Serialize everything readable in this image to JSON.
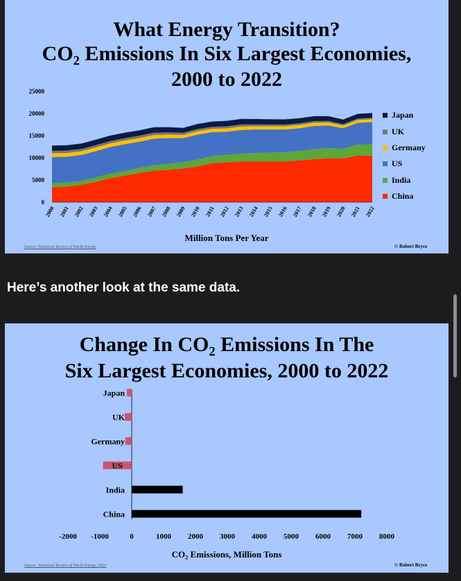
{
  "page": {
    "between_text": "Here’s another look at the same data."
  },
  "chart1": {
    "title_line1": "What Energy Transition?",
    "title_line2_pre": "CO",
    "title_line2_sub": "2",
    "title_line2_post": " Emissions In Six Largest Economies,",
    "title_line3": "2000 to 2022",
    "xlabel": "Million Tons Per Year",
    "source": "Source: Statistical Review of World Energy",
    "credit": "© Robert Bryce"
  },
  "chart2": {
    "title_line1_pre": "Change In CO",
    "title_line1_sub": "2",
    "title_line1_post": " Emissions In The",
    "title_line2": "Six Largest Economies, 2000 to 2022",
    "xlabel_pre": "CO",
    "xlabel_sub": "2",
    "xlabel_post": " Emissions, Million Tons",
    "source": "Source: Statistical Review of World Energy, 2023",
    "credit": "© Robert Bryce"
  },
  "chart_data": [
    {
      "type": "area",
      "stacked": true,
      "title": "What Energy Transition? CO2 Emissions In Six Largest Economies, 2000 to 2022",
      "xlabel": "Million Tons Per Year",
      "ylabel": "",
      "ylim": [
        0,
        25000
      ],
      "yticks": [
        0,
        5000,
        10000,
        15000,
        20000,
        25000
      ],
      "grid": false,
      "legend_position": "right",
      "x": [
        "2000",
        "2001",
        "2002",
        "2003",
        "2004",
        "2005",
        "2006",
        "2007",
        "2008",
        "2009",
        "2010",
        "2011",
        "2012",
        "2013",
        "2014",
        "2015",
        "2016",
        "2017",
        "2018",
        "2019",
        "2020",
        "2021",
        "2022"
      ],
      "series": [
        {
          "name": "China",
          "color": "#ff2a00",
          "values": [
            3400,
            3500,
            3900,
            4600,
            5400,
            6000,
            6600,
            7100,
            7300,
            7600,
            8100,
            8800,
            9000,
            9200,
            9200,
            9200,
            9200,
            9400,
            9700,
            9900,
            9900,
            10500,
            10500
          ]
        },
        {
          "name": "India",
          "color": "#5ea63a",
          "values": [
            900,
            950,
            950,
            1000,
            1050,
            1100,
            1150,
            1250,
            1350,
            1450,
            1550,
            1600,
            1700,
            1800,
            1900,
            2000,
            2100,
            2200,
            2300,
            2300,
            2200,
            2500,
            2600
          ]
        },
        {
          "name": "US",
          "color": "#4372c4",
          "values": [
            5900,
            5800,
            5800,
            5900,
            6000,
            6000,
            5900,
            6000,
            5800,
            5400,
            5600,
            5400,
            5200,
            5300,
            5300,
            5200,
            5100,
            5100,
            5200,
            5100,
            4600,
            4900,
            5000
          ]
        },
        {
          "name": "Germany",
          "color": "#ffc000",
          "values": [
            830,
            850,
            830,
            840,
            830,
            820,
            820,
            800,
            800,
            750,
            780,
            760,
            760,
            780,
            740,
            740,
            750,
            740,
            720,
            680,
            620,
            640,
            630
          ]
        },
        {
          "name": "UK",
          "color": "#777777",
          "values": [
            550,
            560,
            540,
            540,
            540,
            540,
            540,
            530,
            520,
            470,
            490,
            450,
            470,
            460,
            420,
            400,
            390,
            380,
            370,
            360,
            310,
            330,
            330
          ]
        },
        {
          "name": "Japan",
          "color": "#0b1a45",
          "values": [
            1200,
            1190,
            1200,
            1210,
            1230,
            1230,
            1210,
            1240,
            1170,
            1090,
            1140,
            1190,
            1230,
            1240,
            1200,
            1170,
            1150,
            1130,
            1110,
            1070,
            1030,
            1060,
            1050
          ]
        }
      ]
    },
    {
      "type": "bar",
      "orientation": "horizontal",
      "title": "Change In CO2 Emissions In The Six Largest Economies, 2000 to 2022",
      "xlabel": "CO2 Emissions, Million Tons",
      "ylabel": "",
      "xlim": [
        -2000,
        8000
      ],
      "xticks": [
        -2000,
        -1000,
        0,
        1000,
        2000,
        3000,
        4000,
        5000,
        6000,
        7000,
        8000
      ],
      "grid": false,
      "categories": [
        "Japan",
        "UK",
        "Germany",
        "US",
        "India",
        "China"
      ],
      "values": [
        -150,
        -220,
        -200,
        -900,
        1600,
        7200
      ],
      "colors": {
        "positive": "#000000",
        "negative": "#c9566a"
      }
    }
  ]
}
